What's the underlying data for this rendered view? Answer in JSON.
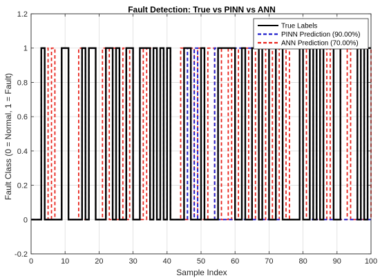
{
  "chart_data": {
    "type": "line",
    "title": "Fault Detection: True vs PINN vs ANN",
    "xlabel": "Sample Index",
    "ylabel": "Fault Class (0 = Normal, 1 = Fault)",
    "xlim": [
      0,
      100
    ],
    "ylim": [
      -0.2,
      1.2
    ],
    "xticks": [
      "0",
      "10",
      "20",
      "30",
      "40",
      "50",
      "60",
      "70",
      "80",
      "90",
      "100"
    ],
    "yticks": [
      "-0.2",
      "0",
      "0.2",
      "0.4",
      "0.6",
      "0.8",
      "1",
      "1.2"
    ],
    "grid": true,
    "legend_position": "top-right",
    "series": [
      {
        "name": "True Labels",
        "color": "#000000",
        "dash": "solid",
        "transitions": [
          3,
          4,
          9,
          11,
          15,
          16,
          17,
          19,
          22,
          24,
          25,
          26,
          28,
          30,
          32,
          35,
          36,
          37,
          38,
          39,
          40,
          41,
          45,
          47,
          50,
          51,
          55,
          60,
          62,
          63,
          65,
          67,
          68,
          70,
          72,
          74,
          79,
          80,
          82,
          83,
          84,
          85,
          86,
          89,
          91,
          96,
          97,
          98,
          99
        ],
        "y0": 0
      },
      {
        "name": "PINN Prediction (90.00%)",
        "color": "#1f1fcc",
        "dash": "dashed",
        "transitions": [
          3,
          4,
          9,
          11,
          15,
          16,
          17,
          19,
          22,
          24,
          25,
          26,
          28,
          30,
          32,
          35,
          36,
          37,
          38,
          39,
          40,
          41,
          46,
          47,
          48,
          49,
          50,
          51,
          54,
          55,
          60,
          62,
          63,
          65,
          67,
          68,
          70,
          72,
          74,
          79,
          80,
          82,
          83,
          84,
          85,
          86,
          89,
          91,
          96,
          97,
          98,
          99
        ],
        "y0": 0
      },
      {
        "name": "ANN Prediction (70.00%)",
        "color": "#e8221a",
        "dash": "dashed",
        "transitions": [
          3,
          5,
          6,
          7,
          9,
          11,
          14,
          15,
          17,
          19,
          21,
          23,
          24,
          25,
          27,
          28,
          29,
          30,
          33,
          34,
          35,
          37,
          38,
          39,
          40,
          41,
          44,
          45,
          47,
          48,
          49,
          50,
          52,
          54,
          55,
          56,
          58,
          59,
          61,
          64,
          66,
          67,
          69,
          70,
          71,
          73,
          75,
          76,
          79,
          81,
          82,
          83,
          85,
          87,
          88,
          91,
          93,
          94,
          96,
          97,
          98,
          100
        ],
        "y0": 0
      }
    ]
  }
}
